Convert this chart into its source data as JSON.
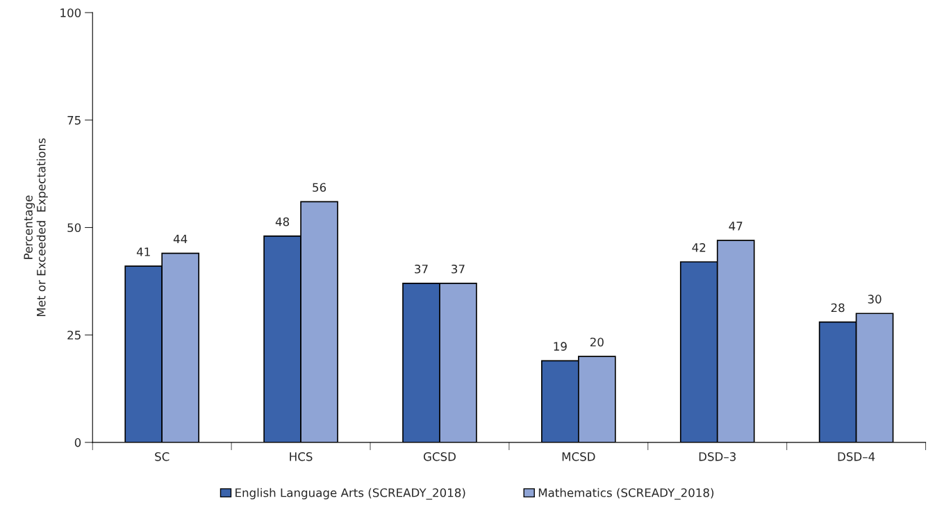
{
  "chart_data": {
    "type": "bar",
    "ylabel": "Percentage\nMet or Exceeded  Expectations",
    "categories": [
      "SC",
      "HCS",
      "GCSD",
      "MCSD",
      "DSD–3",
      "DSD–4"
    ],
    "series": [
      {
        "name": "English Language Arts (SCREADY_2018)",
        "color": "#3a63ab",
        "values": [
          41,
          48,
          37,
          19,
          42,
          28
        ]
      },
      {
        "name": "Mathematics (SCREADY_2018)",
        "color": "#8fa4d5",
        "values": [
          44,
          56,
          37,
          20,
          47,
          30
        ]
      }
    ],
    "ylim": [
      0,
      100
    ],
    "yticks": [
      0,
      25,
      50,
      75,
      100
    ],
    "grid": false,
    "legend": "bottom",
    "data_labels": true
  }
}
